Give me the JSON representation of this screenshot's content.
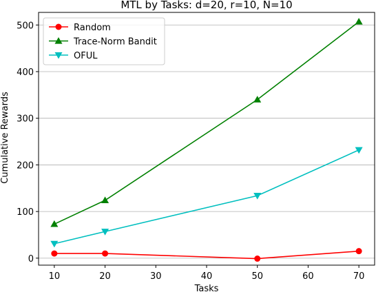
{
  "chart_data": {
    "type": "line",
    "title": "MTL by Tasks: d=20, r=10, N=10",
    "xlabel": "Tasks",
    "ylabel": "Cumulative Rewards",
    "x": [
      10,
      20,
      50,
      70
    ],
    "xlim": [
      6.9,
      73.1
    ],
    "ylim": [
      -15,
      527
    ],
    "xticks": [
      10,
      20,
      30,
      40,
      50,
      60,
      70
    ],
    "yticks": [
      0,
      100,
      200,
      300,
      400,
      500
    ],
    "grid": "y",
    "legend_position": "top-left",
    "series": [
      {
        "name": "Random",
        "values": [
          10,
          10,
          -1,
          15
        ],
        "color": "#ff0000",
        "marker": "circle"
      },
      {
        "name": "Trace-Norm Bandit",
        "values": [
          73,
          124,
          340,
          507
        ],
        "color": "#008000",
        "marker": "triangle-up"
      },
      {
        "name": "OFUL",
        "values": [
          31,
          57,
          134,
          232
        ],
        "color": "#00bfbf",
        "marker": "triangle-down"
      }
    ]
  }
}
